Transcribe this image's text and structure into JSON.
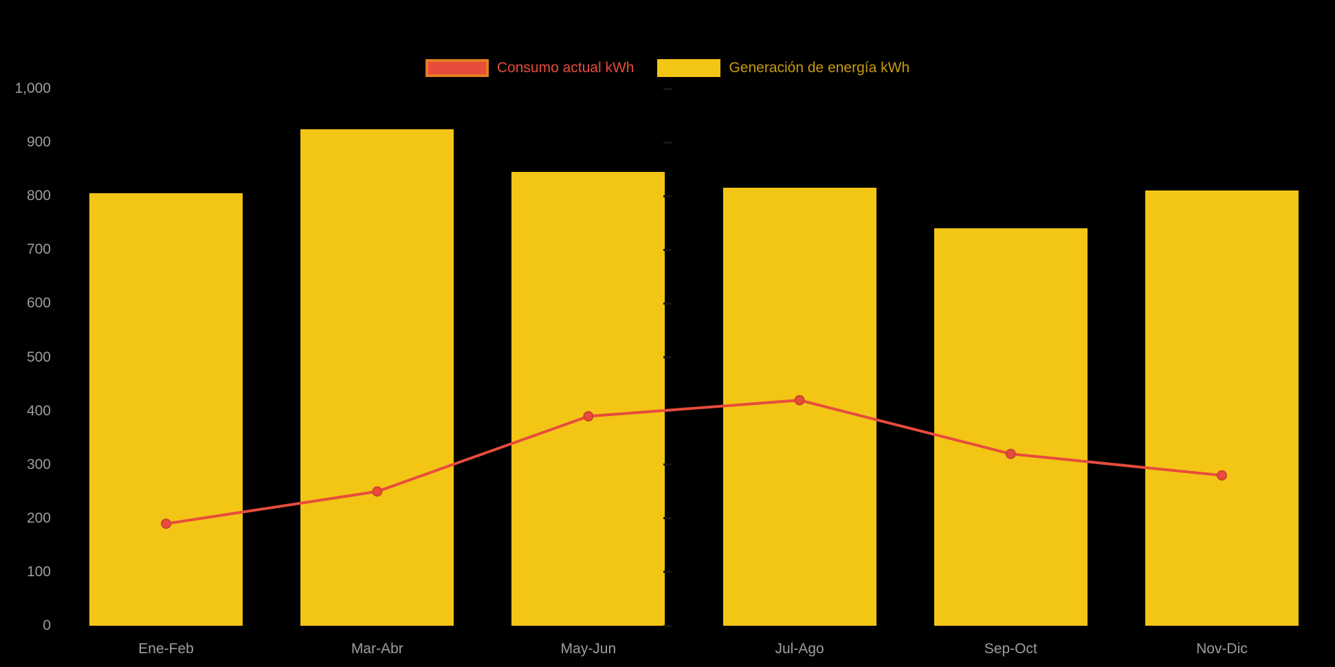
{
  "chart_data": {
    "type": "combo",
    "title": "",
    "categories": [
      "Ene-Feb",
      "Mar-Abr",
      "May-Jun",
      "Jul-Ago",
      "Sep-Oct",
      "Nov-Dic"
    ],
    "series": [
      {
        "name": "Consumo actual kWh",
        "type": "line",
        "values": [
          190,
          250,
          390,
          420,
          320,
          280
        ],
        "color": "#e74c3c",
        "point_color": "#e74c3c",
        "point_border": "#cf4032"
      },
      {
        "name": "Generación de energía kWh",
        "type": "bar",
        "values": [
          805,
          925,
          845,
          815,
          740,
          810
        ],
        "color": "#f3c515"
      }
    ],
    "ylim": [
      0,
      1000
    ],
    "ytick_step": 100,
    "ytick_labels": [
      "0",
      "100",
      "200",
      "300",
      "400",
      "500",
      "600",
      "700",
      "800",
      "900",
      "1,000"
    ],
    "grid": false,
    "legend_position": "top-center",
    "background": "#000000",
    "axis_label_color": "#9e9e9e",
    "center_tick_color": "#161616"
  },
  "legend": {
    "items": [
      {
        "label": "Consumo actual kWh",
        "swatch_fill": "#e74c3c",
        "swatch_border": "#e67e22",
        "text_color": "#e74c3c"
      },
      {
        "label": "Generación de energía kWh",
        "swatch_fill": "#f3c515",
        "swatch_border": "#f3c515",
        "text_color": "#c79a10"
      }
    ]
  }
}
